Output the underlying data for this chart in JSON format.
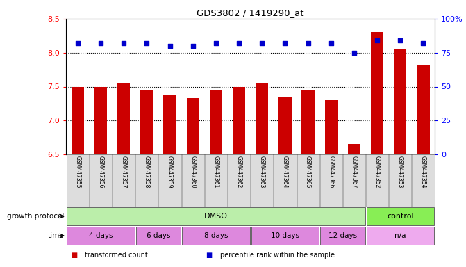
{
  "title": "GDS3802 / 1419290_at",
  "samples": [
    "GSM447355",
    "GSM447356",
    "GSM447357",
    "GSM447358",
    "GSM447359",
    "GSM447360",
    "GSM447361",
    "GSM447362",
    "GSM447363",
    "GSM447364",
    "GSM447365",
    "GSM447366",
    "GSM447367",
    "GSM447352",
    "GSM447353",
    "GSM447354"
  ],
  "bar_values": [
    7.5,
    7.49,
    7.56,
    7.44,
    7.37,
    7.33,
    7.44,
    7.49,
    7.55,
    7.35,
    7.44,
    7.3,
    6.65,
    8.3,
    8.05,
    7.82
  ],
  "dot_values": [
    82,
    82,
    82,
    82,
    80,
    80,
    82,
    82,
    82,
    82,
    82,
    82,
    75,
    84,
    84,
    82
  ],
  "bar_color": "#cc0000",
  "dot_color": "#0000cc",
  "ylim_left": [
    6.5,
    8.5
  ],
  "ylim_right": [
    0,
    100
  ],
  "yticks_left": [
    6.5,
    7.0,
    7.5,
    8.0,
    8.5
  ],
  "yticks_right": [
    0,
    25,
    50,
    75,
    100
  ],
  "ytick_labels_right": [
    "0",
    "25",
    "50",
    "75",
    "100%"
  ],
  "hlines": [
    8.0,
    7.5,
    7.0
  ],
  "growth_protocol_label": "growth protocol",
  "time_label": "time",
  "dmso_color": "#bbeeaa",
  "control_color": "#88ee55",
  "time_color": "#dd88dd",
  "na_color": "#eeaaee",
  "legend_items": [
    {
      "label": "transformed count",
      "color": "#cc0000"
    },
    {
      "label": "percentile rank within the sample",
      "color": "#0000cc"
    }
  ]
}
